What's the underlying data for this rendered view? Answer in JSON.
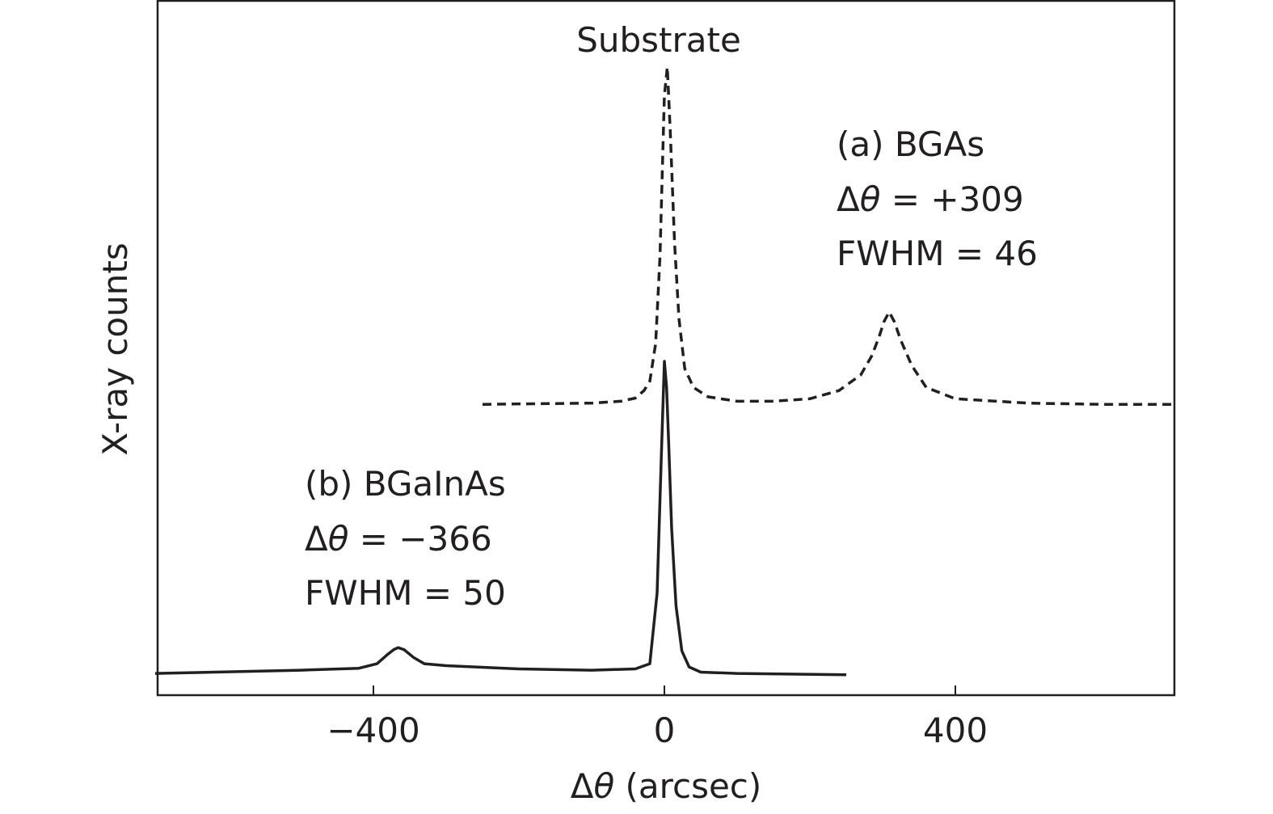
{
  "chart_data": {
    "type": "line",
    "title": "",
    "xlabel_prefix": "Δ",
    "xlabel_symbol": "θ",
    "xlabel_suffix": " (arcsec)",
    "ylabel": "X-ray counts",
    "xlim": [
      -700,
      700
    ],
    "ylim": [
      0,
      1
    ],
    "x_ticks": [
      -400,
      0,
      400
    ],
    "x_tick_labels": [
      "−400",
      "0",
      "400"
    ],
    "grid": false,
    "legend": "none",
    "series": [
      {
        "style": "dashed",
        "color": "#231f20",
        "x": [
          -250,
          -100,
          -60,
          -40,
          -28,
          -20,
          -12,
          -6,
          0,
          4,
          8,
          14,
          20,
          28,
          40,
          60,
          100,
          150,
          200,
          240,
          270,
          285,
          295,
          302,
          309,
          316,
          325,
          340,
          360,
          400,
          500,
          600,
          700
        ],
        "y": [
          0.463,
          0.465,
          0.468,
          0.473,
          0.485,
          0.5,
          0.56,
          0.7,
          0.955,
          1.0,
          0.9,
          0.72,
          0.6,
          0.52,
          0.49,
          0.475,
          0.468,
          0.468,
          0.472,
          0.485,
          0.51,
          0.54,
          0.57,
          0.595,
          0.61,
          0.595,
          0.565,
          0.525,
          0.49,
          0.472,
          0.465,
          0.463,
          0.463
        ]
      },
      {
        "style": "solid",
        "color": "#231f20",
        "x": [
          -700,
          -500,
          -420,
          -395,
          -380,
          -372,
          -366,
          -358,
          -345,
          -330,
          -300,
          -200,
          -100,
          -40,
          -20,
          -10,
          -4,
          0,
          3,
          6,
          10,
          16,
          24,
          34,
          50,
          100,
          250
        ],
        "y": [
          0.015,
          0.02,
          0.023,
          0.03,
          0.045,
          0.052,
          0.055,
          0.052,
          0.04,
          0.03,
          0.027,
          0.022,
          0.02,
          0.022,
          0.03,
          0.14,
          0.36,
          0.5,
          0.46,
          0.37,
          0.24,
          0.12,
          0.05,
          0.025,
          0.017,
          0.015,
          0.013
        ]
      }
    ],
    "annotations": {
      "substrate": "Substrate",
      "a_name": "(a) BGAs",
      "a_shift_value": " = +309",
      "a_fwhm": "FWHM = 46",
      "b_name": "(b) BGaInAs",
      "b_shift_value": " = −366",
      "b_fwhm": "FWHM = 50",
      "delta": "Δ",
      "theta": "θ"
    }
  }
}
